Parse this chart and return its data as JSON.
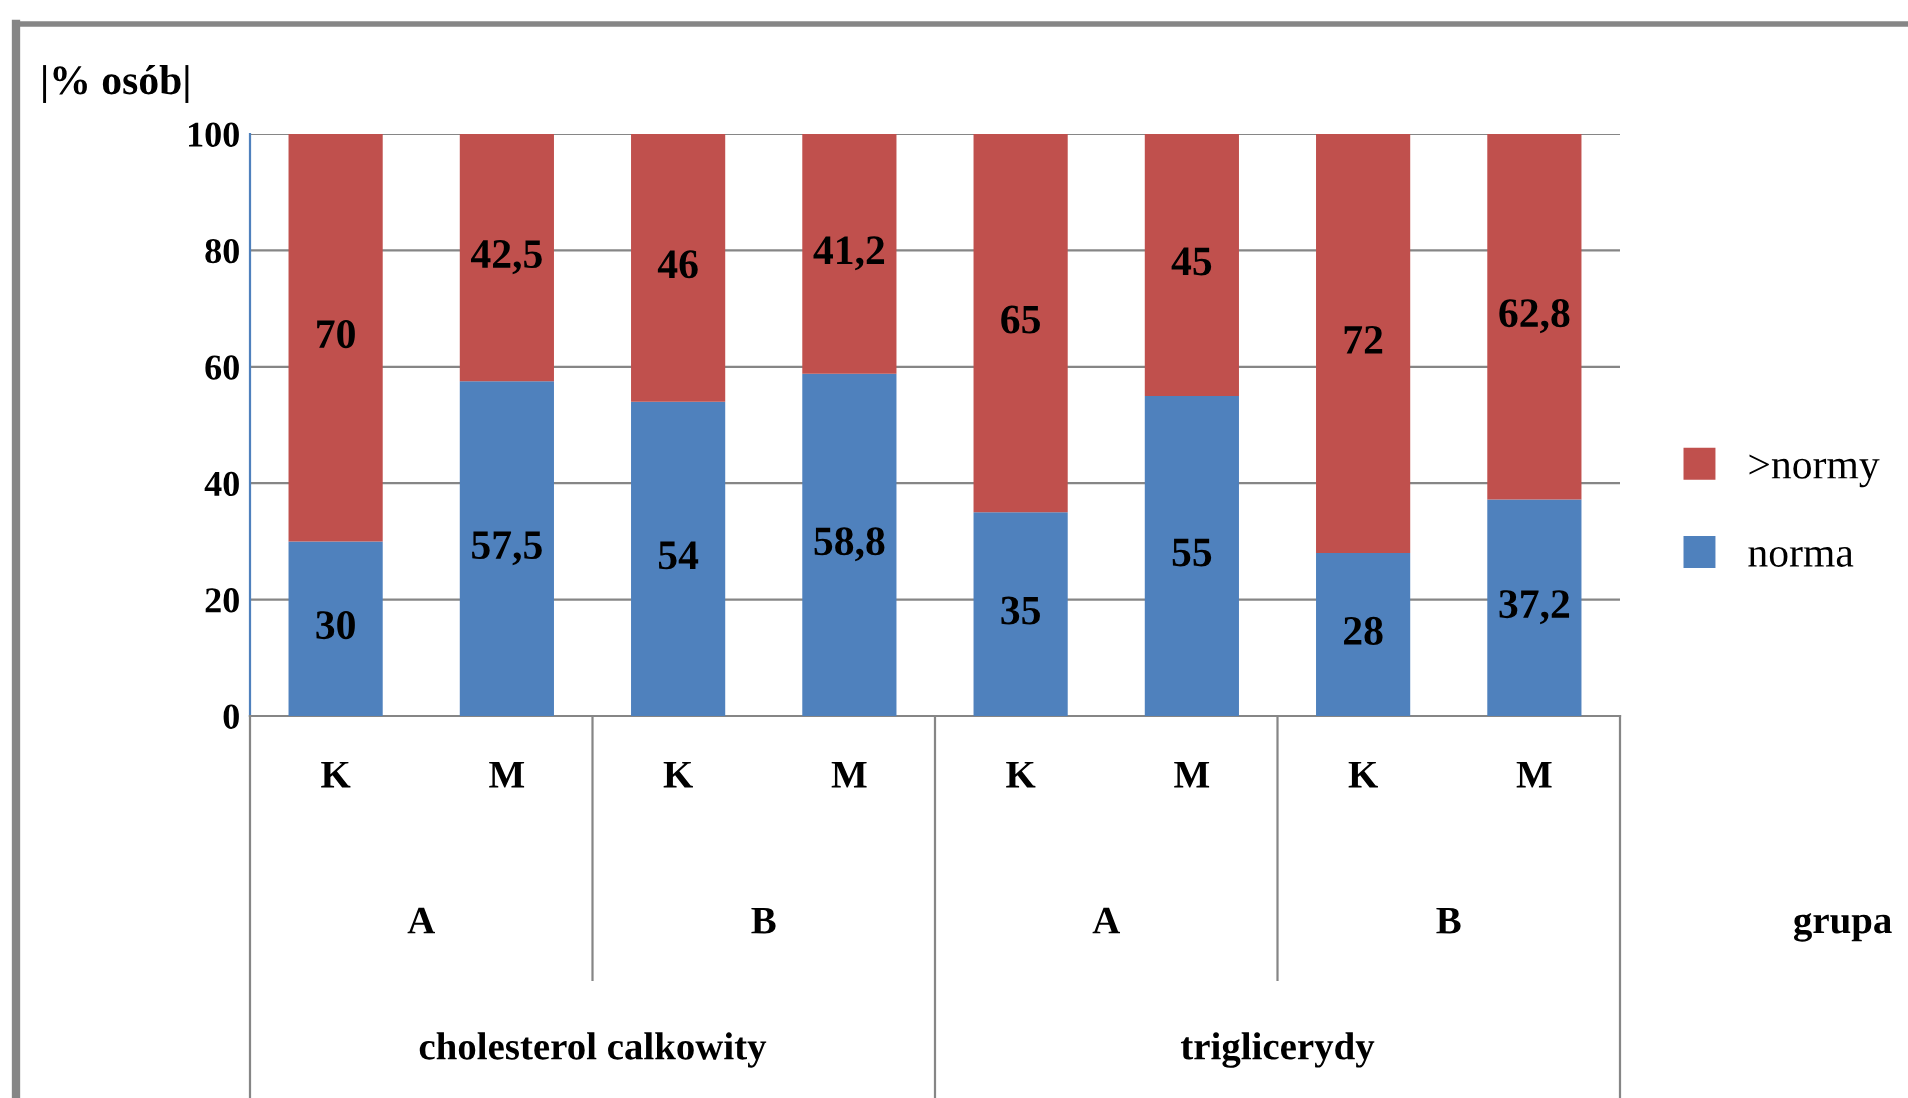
{
  "chart_data": {
    "type": "bar",
    "stacked": true,
    "ylabel": "|% osób|",
    "categories": [
      "K",
      "M",
      "K",
      "M",
      "K",
      "M",
      "K",
      "M"
    ],
    "series": [
      {
        "name": "norma",
        "color": "#4f81bd",
        "values": [
          30,
          57.5,
          54,
          58.8,
          35,
          55,
          28,
          37.2
        ],
        "value_labels": [
          "30",
          "57,5",
          "54",
          "58,8",
          "35",
          "55",
          "28",
          "37,2"
        ]
      },
      {
        "name": ">normy",
        "color": "#c0504d",
        "values": [
          70,
          42.5,
          46,
          41.2,
          65,
          45,
          72,
          62.8
        ],
        "value_labels": [
          "70",
          "42,5",
          "46",
          "41,2",
          "65",
          "45",
          "72",
          "62,8"
        ]
      }
    ],
    "ylim": [
      0,
      100
    ],
    "yticks": [
      0,
      20,
      40,
      60,
      80,
      100
    ],
    "grid": "y",
    "legend": "right",
    "annotations": [
      "A",
      "B",
      "A",
      "B",
      "cholesterol calkowity",
      "triglicerydy",
      "grupa"
    ]
  }
}
